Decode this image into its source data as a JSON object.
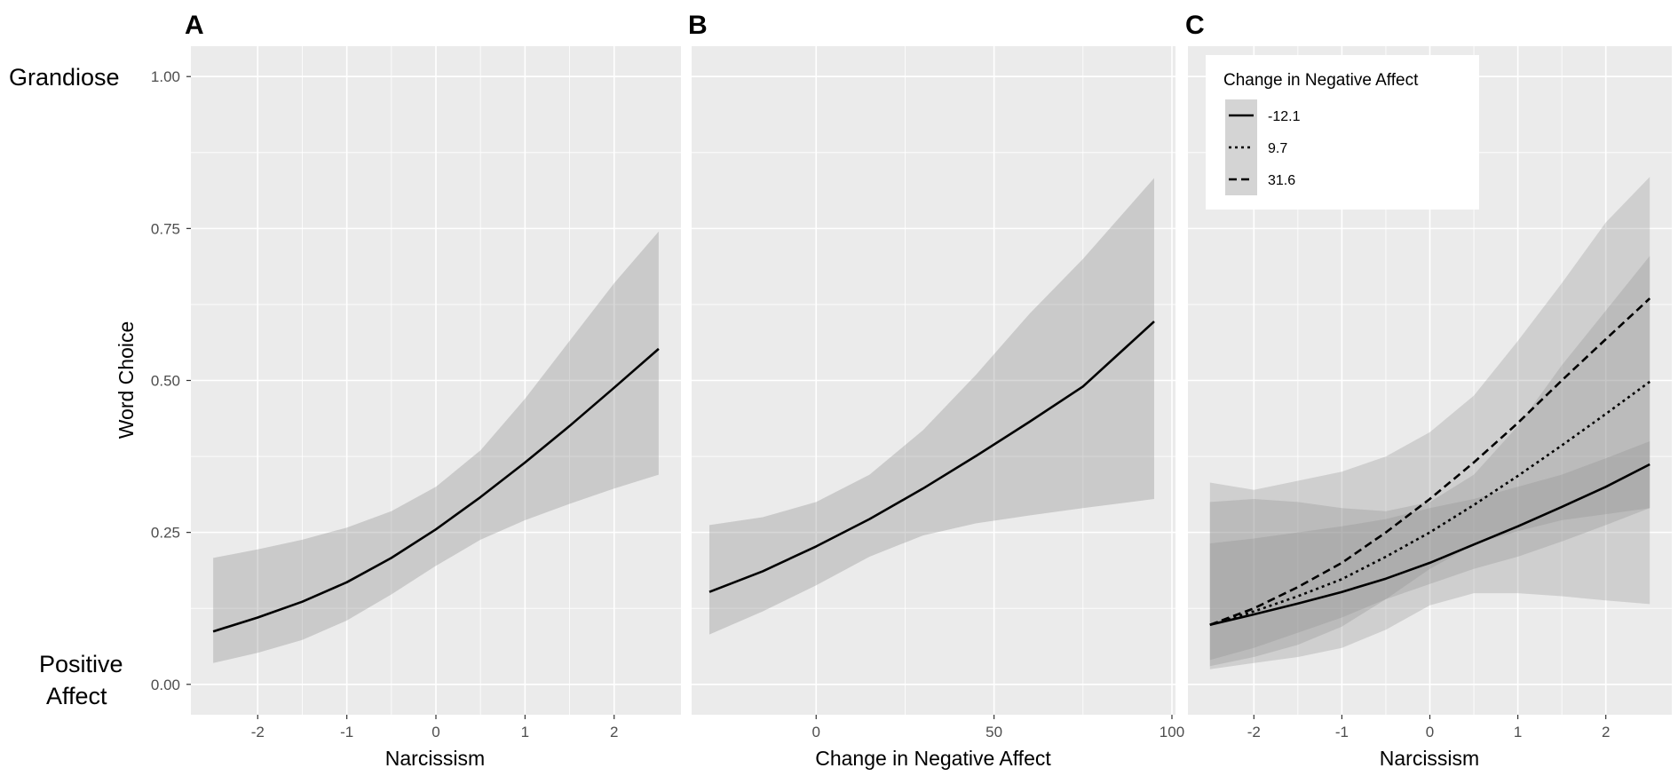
{
  "figure": {
    "side_label_top": "Grandiose",
    "side_label_bottom_line1": "Positive",
    "side_label_bottom_line2": "Affect",
    "colors": {
      "panel_bg": "#ebebeb",
      "grid": "#ffffff",
      "ribbon": "#bdbdbd",
      "line": "#000000"
    }
  },
  "chart_data": [
    {
      "panel": "A",
      "type": "line",
      "xlabel": "Narcissism",
      "ylabel": "Word Choice",
      "xlim": [
        -2.75,
        2.75
      ],
      "ylim": [
        -0.05,
        1.05
      ],
      "xticks": [
        -2,
        -1,
        0,
        1,
        2
      ],
      "xtick_labels": [
        "-2",
        "-1",
        "0",
        "1",
        "2"
      ],
      "yticks": [
        0,
        0.25,
        0.5,
        0.75,
        1.0
      ],
      "ytick_labels": [
        "0.00",
        "0.25",
        "0.50",
        "0.75",
        "1.00"
      ],
      "series": [
        {
          "name": "fit",
          "style": "solid",
          "x": [
            -2.5,
            -2.0,
            -1.5,
            -1.0,
            -0.5,
            0.0,
            0.5,
            1.0,
            1.5,
            2.0,
            2.5
          ],
          "y": [
            0.087,
            0.11,
            0.136,
            0.168,
            0.208,
            0.255,
            0.308,
            0.365,
            0.425,
            0.488,
            0.552
          ],
          "lower": [
            0.035,
            0.052,
            0.073,
            0.105,
            0.148,
            0.195,
            0.238,
            0.27,
            0.297,
            0.322,
            0.345
          ],
          "upper": [
            0.208,
            0.222,
            0.238,
            0.258,
            0.285,
            0.325,
            0.385,
            0.47,
            0.565,
            0.66,
            0.745
          ]
        }
      ]
    },
    {
      "panel": "B",
      "type": "line",
      "xlabel": "Change in Negative Affect",
      "ylabel": "",
      "xlim": [
        -35,
        101
      ],
      "ylim": [
        -0.05,
        1.05
      ],
      "xticks": [
        0,
        50,
        100
      ],
      "xtick_labels": [
        "0",
        "50",
        "100"
      ],
      "yticks": [
        0,
        0.25,
        0.5,
        0.75,
        1.0
      ],
      "series": [
        {
          "name": "fit",
          "style": "solid",
          "x": [
            -30,
            -15,
            0,
            15,
            30,
            45,
            60,
            75,
            95
          ],
          "y": [
            0.152,
            0.186,
            0.227,
            0.272,
            0.322,
            0.376,
            0.432,
            0.49,
            0.597
          ],
          "lower": [
            0.082,
            0.12,
            0.163,
            0.21,
            0.245,
            0.265,
            0.278,
            0.29,
            0.305
          ],
          "upper": [
            0.262,
            0.275,
            0.3,
            0.345,
            0.418,
            0.51,
            0.61,
            0.7,
            0.833
          ]
        }
      ]
    },
    {
      "panel": "C",
      "type": "line",
      "xlabel": "Narcissism",
      "ylabel": "",
      "xlim": [
        -2.75,
        2.75
      ],
      "ylim": [
        -0.05,
        1.05
      ],
      "xticks": [
        -2,
        -1,
        0,
        1,
        2
      ],
      "xtick_labels": [
        "-2",
        "-1",
        "0",
        "1",
        "2"
      ],
      "yticks": [
        0,
        0.25,
        0.5,
        0.75,
        1.0
      ],
      "legend": {
        "title": "Change in Negative Affect",
        "position": "top-left"
      },
      "series": [
        {
          "name": "-12.1",
          "style": "solid",
          "x": [
            -2.5,
            -2.0,
            -1.5,
            -1.0,
            -0.5,
            0.0,
            0.5,
            1.0,
            1.5,
            2.0,
            2.5
          ],
          "y": [
            0.098,
            0.115,
            0.133,
            0.152,
            0.174,
            0.2,
            0.23,
            0.26,
            0.292,
            0.325,
            0.362
          ],
          "lower": [
            0.04,
            0.06,
            0.085,
            0.11,
            0.14,
            0.165,
            0.19,
            0.21,
            0.235,
            0.262,
            0.29
          ],
          "upper": [
            0.232,
            0.24,
            0.25,
            0.26,
            0.272,
            0.29,
            0.305,
            0.325,
            0.345,
            0.372,
            0.4
          ]
        },
        {
          "name": "9.7",
          "style": "dotted",
          "x": [
            -2.5,
            -2.0,
            -1.5,
            -1.0,
            -0.5,
            0.0,
            0.5,
            1.0,
            1.5,
            2.0,
            2.5
          ],
          "y": [
            0.098,
            0.12,
            0.145,
            0.173,
            0.21,
            0.25,
            0.295,
            0.343,
            0.393,
            0.445,
            0.498
          ],
          "lower": [
            0.03,
            0.045,
            0.065,
            0.095,
            0.14,
            0.19,
            0.23,
            0.252,
            0.27,
            0.28,
            0.29
          ],
          "upper": [
            0.3,
            0.305,
            0.3,
            0.29,
            0.285,
            0.3,
            0.345,
            0.425,
            0.525,
            0.615,
            0.705
          ]
        },
        {
          "name": "31.6",
          "style": "dashed",
          "x": [
            -2.5,
            -2.0,
            -1.5,
            -1.0,
            -0.5,
            0.0,
            0.5,
            1.0,
            1.5,
            2.0,
            2.5
          ],
          "y": [
            0.098,
            0.125,
            0.16,
            0.2,
            0.25,
            0.305,
            0.365,
            0.43,
            0.5,
            0.568,
            0.635
          ],
          "lower": [
            0.025,
            0.035,
            0.045,
            0.06,
            0.09,
            0.13,
            0.15,
            0.15,
            0.145,
            0.138,
            0.132
          ],
          "upper": [
            0.332,
            0.32,
            0.335,
            0.35,
            0.375,
            0.415,
            0.475,
            0.565,
            0.66,
            0.76,
            0.835
          ]
        }
      ]
    }
  ]
}
